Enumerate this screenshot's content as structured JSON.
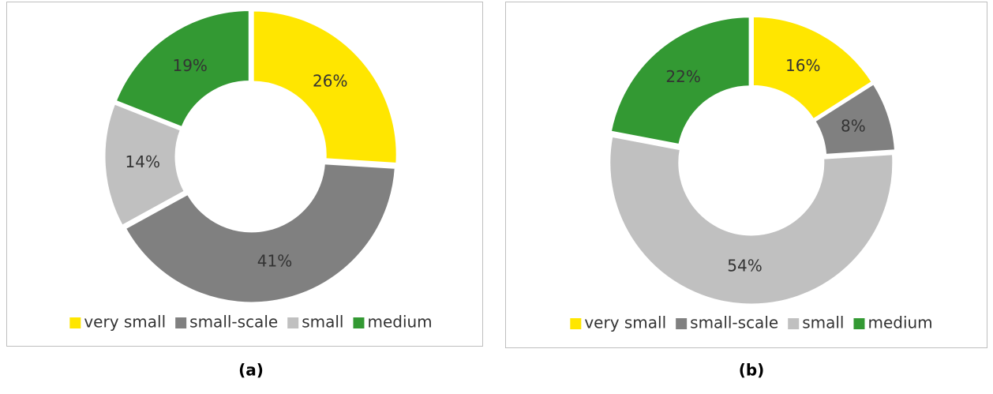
{
  "chart_data": [
    {
      "type": "donut",
      "caption": "(a)",
      "categories": [
        "very small",
        "small-scale",
        "small",
        "medium"
      ],
      "values": [
        26,
        41,
        14,
        19
      ],
      "value_labels": [
        "26%",
        "41%",
        "14%",
        "19%"
      ],
      "colors": [
        "#ffe600",
        "#808080",
        "#c0c0c0",
        "#339933"
      ],
      "legend": "bottom"
    },
    {
      "type": "donut",
      "caption": "(b)",
      "categories": [
        "very small",
        "small-scale",
        "small",
        "medium"
      ],
      "values": [
        16,
        8,
        54,
        22
      ],
      "value_labels": [
        "16%",
        "8%",
        "54%",
        "22%"
      ],
      "colors": [
        "#ffe600",
        "#808080",
        "#c0c0c0",
        "#339933"
      ],
      "legend": "bottom"
    }
  ]
}
